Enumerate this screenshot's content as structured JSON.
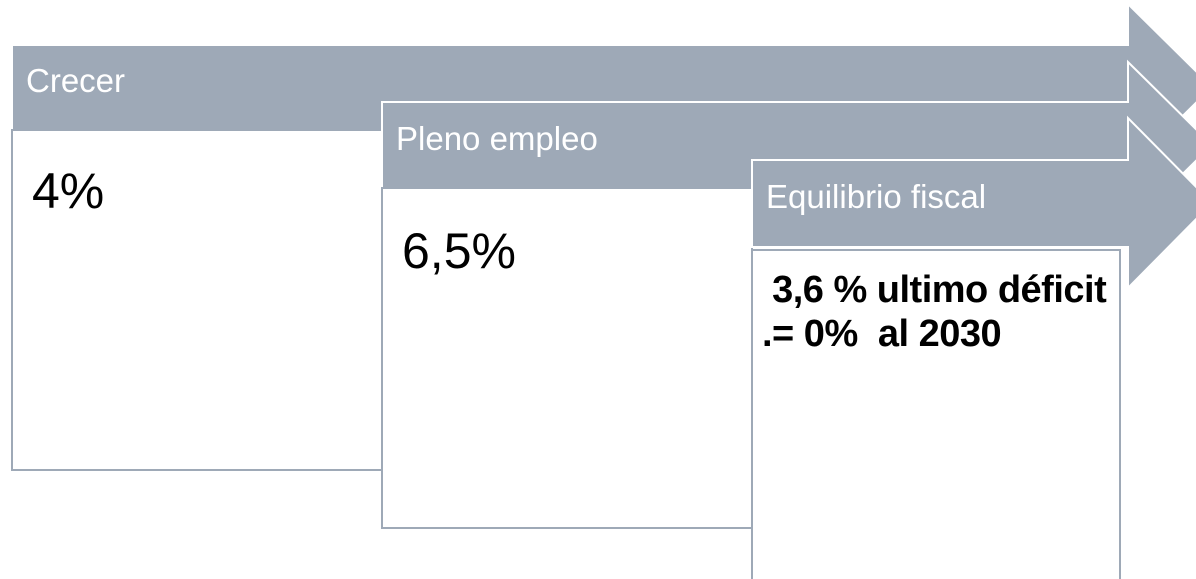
{
  "steps": [
    {
      "title": "Crecer",
      "value": "4%"
    },
    {
      "title": "Pleno empleo",
      "value": "6,5%"
    },
    {
      "title": "Equilibrio fiscal",
      "value": " 3,6 % ultimo déficit .= 0%  al 2030"
    }
  ]
}
